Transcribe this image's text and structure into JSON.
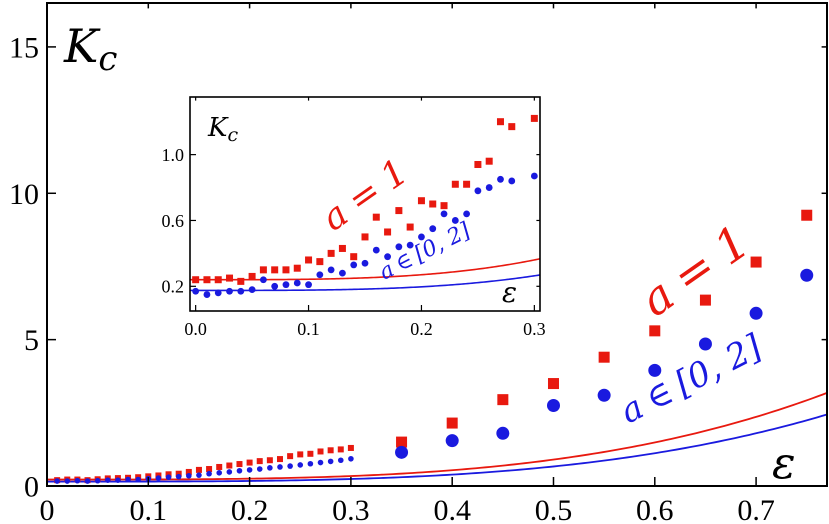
{
  "chart_data": [
    {
      "id": "main",
      "type": "scatter",
      "xlabel": "ε",
      "ylabel": "K_c",
      "ylabel_main": "K",
      "ylabel_sub": "c",
      "xlim": [
        0,
        0.77
      ],
      "ylim": [
        0,
        16.5
      ],
      "xticks": [
        0,
        0.1,
        0.2,
        0.3,
        0.4,
        0.5,
        0.6,
        0.7
      ],
      "xtick_labels": [
        "0",
        "0.1",
        "0.2",
        "0.3",
        "0.4",
        "0.5",
        "0.6",
        "0.7"
      ],
      "yticks": [
        0,
        5,
        10,
        15
      ],
      "ytick_labels": [
        "0",
        "5",
        "10",
        "15"
      ],
      "grid": false,
      "annotations": [
        {
          "name": "a=1",
          "prefix": "a",
          "op": "=",
          "value": "1",
          "color": "#e8190f"
        },
        {
          "name": "a∈[0,2]",
          "prefix": "a",
          "op": "∈",
          "value": "[0, 2]",
          "color": "#1a1adf"
        }
      ],
      "series": [
        {
          "key": "red",
          "color": "#e8190f",
          "marker": "square",
          "points": [
            [
              0.01,
              0.2
            ],
            [
              0.02,
              0.22
            ],
            [
              0.03,
              0.22
            ],
            [
              0.04,
              0.2
            ],
            [
              0.05,
              0.23
            ],
            [
              0.06,
              0.26
            ],
            [
              0.07,
              0.27
            ],
            [
              0.08,
              0.28
            ],
            [
              0.09,
              0.3
            ],
            [
              0.1,
              0.33
            ],
            [
              0.11,
              0.36
            ],
            [
              0.12,
              0.4
            ],
            [
              0.13,
              0.42
            ],
            [
              0.14,
              0.48
            ],
            [
              0.15,
              0.55
            ],
            [
              0.16,
              0.58
            ],
            [
              0.17,
              0.65
            ],
            [
              0.18,
              0.7
            ],
            [
              0.19,
              0.75
            ],
            [
              0.2,
              0.8
            ],
            [
              0.21,
              0.85
            ],
            [
              0.22,
              0.88
            ],
            [
              0.23,
              0.92
            ],
            [
              0.24,
              1.02
            ],
            [
              0.25,
              1.08
            ],
            [
              0.26,
              1.1
            ],
            [
              0.27,
              1.18
            ],
            [
              0.28,
              1.22
            ],
            [
              0.29,
              1.25
            ],
            [
              0.3,
              1.3
            ],
            [
              0.35,
              1.5
            ],
            [
              0.4,
              2.15
            ],
            [
              0.45,
              2.95
            ],
            [
              0.5,
              3.5
            ],
            [
              0.55,
              4.4
            ],
            [
              0.6,
              5.3
            ],
            [
              0.65,
              6.35
            ],
            [
              0.7,
              7.65
            ],
            [
              0.75,
              9.25
            ]
          ],
          "fit": {
            "a": 0.22,
            "b": 7.2,
            "c": 3.4
          }
        },
        {
          "key": "blue",
          "color": "#1a1adf",
          "marker": "circle",
          "points": [
            [
              0.01,
              0.17
            ],
            [
              0.02,
              0.17
            ],
            [
              0.03,
              0.18
            ],
            [
              0.04,
              0.17
            ],
            [
              0.05,
              0.18
            ],
            [
              0.06,
              0.2
            ],
            [
              0.07,
              0.2
            ],
            [
              0.08,
              0.22
            ],
            [
              0.09,
              0.22
            ],
            [
              0.1,
              0.25
            ],
            [
              0.11,
              0.27
            ],
            [
              0.12,
              0.3
            ],
            [
              0.13,
              0.32
            ],
            [
              0.14,
              0.35
            ],
            [
              0.15,
              0.37
            ],
            [
              0.16,
              0.42
            ],
            [
              0.17,
              0.45
            ],
            [
              0.18,
              0.48
            ],
            [
              0.19,
              0.52
            ],
            [
              0.2,
              0.55
            ],
            [
              0.21,
              0.58
            ],
            [
              0.22,
              0.62
            ],
            [
              0.23,
              0.65
            ],
            [
              0.24,
              0.68
            ],
            [
              0.25,
              0.72
            ],
            [
              0.26,
              0.76
            ],
            [
              0.27,
              0.8
            ],
            [
              0.28,
              0.84
            ],
            [
              0.29,
              0.88
            ],
            [
              0.3,
              0.93
            ],
            [
              0.35,
              1.15
            ],
            [
              0.4,
              1.55
            ],
            [
              0.45,
              1.8
            ],
            [
              0.5,
              2.75
            ],
            [
              0.55,
              3.1
            ],
            [
              0.6,
              3.95
            ],
            [
              0.65,
              4.85
            ],
            [
              0.7,
              5.9
            ],
            [
              0.75,
              7.2
            ]
          ],
          "fit": {
            "a": 0.15,
            "b": 5.65,
            "c": 3.45
          }
        }
      ]
    },
    {
      "id": "inset",
      "type": "scatter",
      "xlabel": "ε",
      "ylabel": "K_c",
      "ylabel_main": "K",
      "ylabel_sub": "c",
      "xlim": [
        -0.005,
        0.305
      ],
      "ylim": [
        0.05,
        1.35
      ],
      "xticks": [
        0,
        0.1,
        0.2,
        0.3
      ],
      "xtick_labels": [
        "0.0",
        "0.1",
        "0.2",
        "0.3"
      ],
      "yticks": [
        0.2,
        0.6,
        1.0
      ],
      "ytick_labels": [
        "0.2",
        "0.6",
        "1.0"
      ],
      "grid": false,
      "annotations": [
        {
          "name": "a=1",
          "prefix": "a",
          "op": "=",
          "value": "1",
          "color": "#e8190f"
        },
        {
          "name": "a∈[0,2]",
          "prefix": "a",
          "op": "∈",
          "value": "[0, 2]",
          "color": "#1a1adf"
        }
      ],
      "series": [
        {
          "key": "red",
          "color": "#e8190f",
          "marker": "square",
          "points": [
            [
              0.0,
              0.24
            ],
            [
              0.01,
              0.24
            ],
            [
              0.02,
              0.24
            ],
            [
              0.03,
              0.25
            ],
            [
              0.04,
              0.23
            ],
            [
              0.05,
              0.26
            ],
            [
              0.06,
              0.3
            ],
            [
              0.07,
              0.3
            ],
            [
              0.08,
              0.3
            ],
            [
              0.09,
              0.31
            ],
            [
              0.1,
              0.36
            ],
            [
              0.11,
              0.35
            ],
            [
              0.12,
              0.4
            ],
            [
              0.13,
              0.43
            ],
            [
              0.14,
              0.38
            ],
            [
              0.15,
              0.5
            ],
            [
              0.16,
              0.62
            ],
            [
              0.17,
              0.53
            ],
            [
              0.18,
              0.66
            ],
            [
              0.19,
              0.56
            ],
            [
              0.2,
              0.72
            ],
            [
              0.21,
              0.7
            ],
            [
              0.22,
              0.69
            ],
            [
              0.23,
              0.82
            ],
            [
              0.24,
              0.82
            ],
            [
              0.25,
              0.94
            ],
            [
              0.26,
              0.96
            ],
            [
              0.27,
              1.2
            ],
            [
              0.28,
              1.17
            ],
            [
              0.3,
              1.22
            ]
          ],
          "fit": {
            "a": 0.24,
            "b": 7.2,
            "c": 3.4
          }
        },
        {
          "key": "blue",
          "color": "#1a1adf",
          "marker": "circle",
          "points": [
            [
              0.0,
              0.17
            ],
            [
              0.01,
              0.15
            ],
            [
              0.02,
              0.16
            ],
            [
              0.03,
              0.17
            ],
            [
              0.04,
              0.17
            ],
            [
              0.05,
              0.18
            ],
            [
              0.06,
              0.24
            ],
            [
              0.07,
              0.2
            ],
            [
              0.08,
              0.21
            ],
            [
              0.09,
              0.22
            ],
            [
              0.1,
              0.21
            ],
            [
              0.11,
              0.27
            ],
            [
              0.12,
              0.3
            ],
            [
              0.13,
              0.28
            ],
            [
              0.14,
              0.33
            ],
            [
              0.15,
              0.34
            ],
            [
              0.16,
              0.42
            ],
            [
              0.17,
              0.38
            ],
            [
              0.18,
              0.44
            ],
            [
              0.19,
              0.45
            ],
            [
              0.2,
              0.5
            ],
            [
              0.21,
              0.55
            ],
            [
              0.22,
              0.64
            ],
            [
              0.23,
              0.6
            ],
            [
              0.24,
              0.64
            ],
            [
              0.25,
              0.78
            ],
            [
              0.26,
              0.8
            ],
            [
              0.27,
              0.85
            ],
            [
              0.28,
              0.84
            ],
            [
              0.3,
              0.87
            ]
          ],
          "fit": {
            "a": 0.175,
            "b": 5.65,
            "c": 3.45
          }
        }
      ]
    }
  ]
}
